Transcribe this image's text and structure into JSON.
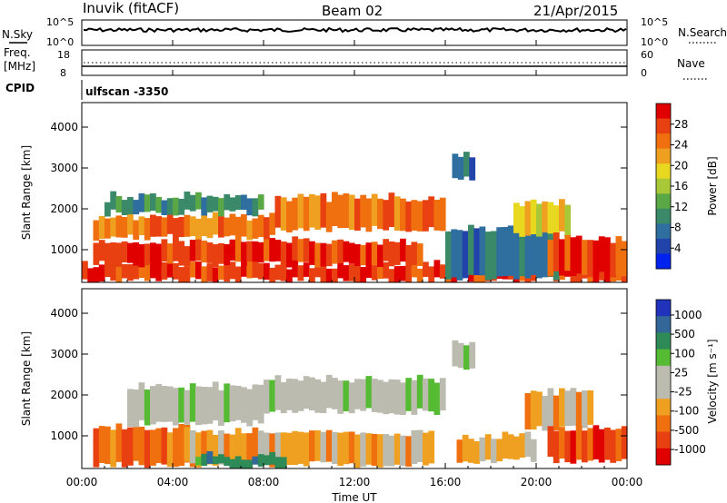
{
  "header": {
    "station": "Inuvik (fitACF)",
    "beam": "Beam 02",
    "date": "21/Apr/2015"
  },
  "strip_nsky": {
    "left_label": "N.Sky",
    "right_label": "N.Search",
    "left_ticks": [
      "10^5",
      "10^0"
    ],
    "right_ticks": [
      "10^5",
      "10^0"
    ]
  },
  "strip_freq": {
    "left_label_1": "Freq.",
    "left_label_2": "[MHz]",
    "right_label": "Nave",
    "left_ticks": [
      "18",
      "8"
    ],
    "right_ticks": [
      "60",
      "0"
    ]
  },
  "cpid": {
    "label": "CPID",
    "value": "ulfscan -3350"
  },
  "colors": {
    "power_scale": [
      "#0022ee",
      "#2244aa",
      "#2e6fa0",
      "#3a8a6a",
      "#5aa845",
      "#a8c838",
      "#e8d820",
      "#f0a020",
      "#f07010",
      "#e84010",
      "#e00000"
    ],
    "velocity_scale": [
      "#2233bb",
      "#336699",
      "#2e8b57",
      "#55bb33",
      "#bbbbb0",
      "#bbbbb0",
      "#f0a020",
      "#f07010",
      "#e84010",
      "#e00000"
    ]
  },
  "chart_data": [
    {
      "type": "heatmap",
      "title": "Power",
      "xlabel": "Time UT",
      "ylabel": "Slant Range [km]",
      "x_ticks": [
        "00:00",
        "04:00",
        "08:00",
        "12:00",
        "16:00",
        "20:00",
        "00:00"
      ],
      "y_ticks": [
        "1000",
        "2000",
        "3000",
        "4000"
      ],
      "ylim": [
        200,
        4600
      ],
      "colorbar": {
        "label": "Power [dB]",
        "ticks": [
          "4",
          "8",
          "12",
          "16",
          "20",
          "24",
          "28"
        ],
        "range": [
          0,
          32
        ]
      },
      "bands": [
        {
          "start_h": 0.0,
          "end_h": 24.0,
          "range_low": 250,
          "range_high": 650,
          "level": 9
        },
        {
          "start_h": 0.5,
          "end_h": 15.0,
          "range_low": 650,
          "range_high": 1200,
          "level": 9
        },
        {
          "start_h": 0.5,
          "end_h": 8.5,
          "range_low": 1300,
          "range_high": 1800,
          "level": 8
        },
        {
          "start_h": 8.5,
          "end_h": 16.0,
          "range_low": 1500,
          "range_high": 2300,
          "level": 8
        },
        {
          "start_h": 1.0,
          "end_h": 8.0,
          "range_low": 1900,
          "range_high": 2300,
          "level": 3
        },
        {
          "start_h": 16.0,
          "end_h": 21.0,
          "range_low": 300,
          "range_high": 1500,
          "level": 2
        },
        {
          "start_h": 19.0,
          "end_h": 21.5,
          "range_low": 1400,
          "range_high": 2200,
          "level": 6
        },
        {
          "start_h": 20.5,
          "end_h": 24.0,
          "range_low": 400,
          "range_high": 1300,
          "level": 9
        },
        {
          "start_h": 16.3,
          "end_h": 17.3,
          "range_low": 2700,
          "range_high": 3300,
          "level": 2
        }
      ]
    },
    {
      "type": "heatmap",
      "title": "Velocity",
      "xlabel": "Time UT",
      "ylabel": "Slant Range [km]",
      "x_ticks": [
        "00:00",
        "04:00",
        "08:00",
        "12:00",
        "16:00",
        "20:00",
        "00:00"
      ],
      "y_ticks": [
        "1000",
        "2000",
        "3000",
        "4000"
      ],
      "ylim": [
        200,
        4600
      ],
      "colorbar": {
        "label": "Velocity [m s⁻¹]",
        "ticks": [
          "1000",
          "500",
          "100",
          "25",
          "-25",
          "-100",
          "-500",
          "-1000"
        ],
        "range": [
          -1200,
          1200
        ]
      },
      "bands": [
        {
          "start_h": 0.5,
          "end_h": 5.0,
          "range_low": 300,
          "range_high": 1200,
          "level": 7
        },
        {
          "start_h": 4.0,
          "end_h": 15.5,
          "range_low": 300,
          "range_high": 1100,
          "level": 6
        },
        {
          "start_h": 2.0,
          "end_h": 8.0,
          "range_low": 1300,
          "range_high": 2200,
          "level": 4
        },
        {
          "start_h": 8.0,
          "end_h": 16.0,
          "range_low": 1600,
          "range_high": 2400,
          "level": 4
        },
        {
          "start_h": 5.0,
          "end_h": 9.0,
          "range_low": 250,
          "range_high": 500,
          "level": 2
        },
        {
          "start_h": 16.3,
          "end_h": 17.3,
          "range_low": 2700,
          "range_high": 3300,
          "level": 4
        },
        {
          "start_h": 16.5,
          "end_h": 20.0,
          "range_low": 400,
          "range_high": 1000,
          "level": 6
        },
        {
          "start_h": 19.5,
          "end_h": 22.5,
          "range_low": 1200,
          "range_high": 2100,
          "level": 6
        },
        {
          "start_h": 20.5,
          "end_h": 24.0,
          "range_low": 400,
          "range_high": 1200,
          "level": 8
        }
      ]
    }
  ]
}
